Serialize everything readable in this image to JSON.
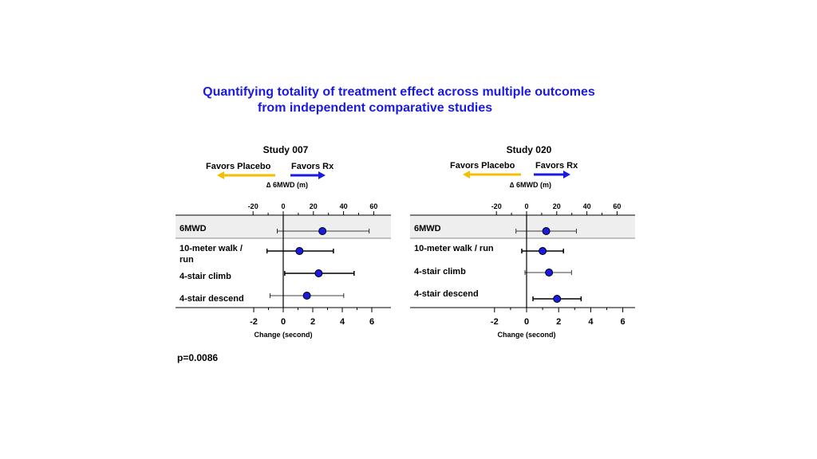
{
  "title_line1": "Quantifying totality of treatment effect across multiple outcomes",
  "title_line2": "from independent comparative studies",
  "title_color": "#1a1ae0",
  "p_value": "p=0.0086",
  "colors": {
    "placebo_arrow": "#f2c000",
    "rx_arrow": "#1a1ae0",
    "marker": "#1a1ae0",
    "highlight_band": "#eeeeee"
  },
  "chart_data": [
    {
      "type": "forest",
      "title": "Study 007",
      "favors_left": "Favors Placebo",
      "favors_right": "Favors Rx",
      "top_axis_label": "∆ 6MWD (m)",
      "top_ticks": [
        "-20",
        "0",
        "20",
        "40",
        "60"
      ],
      "top_tick_values": [
        -20,
        0,
        20,
        40,
        60
      ],
      "top_xlim": [
        -20,
        60
      ],
      "bottom_axis_label": "Change (second)",
      "bottom_ticks": [
        "-2",
        "0",
        "2",
        "4",
        "6"
      ],
      "bottom_tick_values": [
        -2,
        0,
        2,
        4,
        6
      ],
      "bottom_xlim": [
        -2,
        6
      ],
      "rows": [
        {
          "label": "6MWD",
          "axis": "top",
          "estimate": 26,
          "lower": -4,
          "upper": 57,
          "highlight": true
        },
        {
          "label": "10-meter walk / run",
          "axis": "bottom",
          "estimate": 1.1,
          "lower": -1.1,
          "upper": 3.4
        },
        {
          "label": "4-stair climb",
          "axis": "bottom",
          "estimate": 2.4,
          "lower": 0.1,
          "upper": 4.8
        },
        {
          "label": "4-stair descend",
          "axis": "bottom",
          "estimate": 1.6,
          "lower": -0.9,
          "upper": 4.1
        }
      ]
    },
    {
      "type": "forest",
      "title": "Study 020",
      "favors_left": "Favors Placebo",
      "favors_right": "Favors Rx",
      "top_axis_label": "∆ 6MWD (m)",
      "top_ticks": [
        "-20",
        "0",
        "20",
        "40",
        "60"
      ],
      "top_tick_values": [
        -20,
        0,
        20,
        40,
        60
      ],
      "top_xlim": [
        -20,
        60
      ],
      "bottom_axis_label": "Change (second)",
      "bottom_ticks": [
        "-2",
        "0",
        "2",
        "4",
        "6"
      ],
      "bottom_tick_values": [
        -2,
        0,
        2,
        4,
        6
      ],
      "bottom_xlim": [
        -2,
        6
      ],
      "rows": [
        {
          "label": "6MWD",
          "axis": "top",
          "estimate": 13,
          "lower": -7,
          "upper": 33,
          "highlight": true
        },
        {
          "label": "10-meter walk / run",
          "axis": "bottom",
          "estimate": 1.0,
          "lower": -0.3,
          "upper": 2.3
        },
        {
          "label": "4-stair climb",
          "axis": "bottom",
          "estimate": 1.4,
          "lower": -0.1,
          "upper": 2.8
        },
        {
          "label": "4-stair descend",
          "axis": "bottom",
          "estimate": 1.9,
          "lower": 0.4,
          "upper": 3.4
        }
      ]
    }
  ]
}
